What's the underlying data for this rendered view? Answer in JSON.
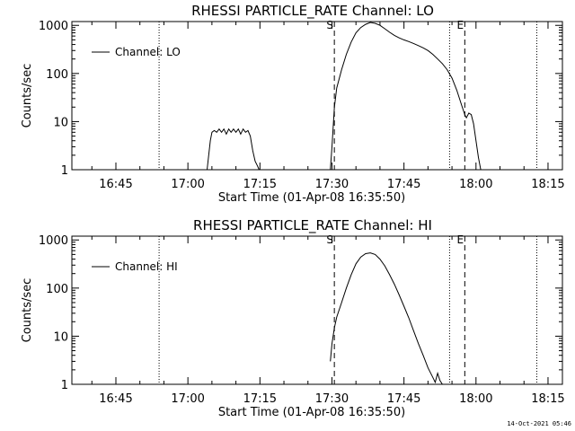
{
  "page": {
    "timestamp": "14-Oct-2021 05:46"
  },
  "chart_data": [
    {
      "type": "line",
      "title": "RHESSI PARTICLE_RATE Channel: LO",
      "xlabel": "Start Time (01-Apr-08 16:35:50)",
      "ylabel": "Counts/sec",
      "y_scale": "log",
      "ylim": [
        1,
        1200
      ],
      "xlim": [
        "16:35:50",
        "18:18:00"
      ],
      "x_ticks": [
        "16:45",
        "17:00",
        "17:15",
        "17:30",
        "17:45",
        "18:00",
        "18:15"
      ],
      "y_ticks": [
        "1",
        "10",
        "100",
        "1000"
      ],
      "legend": {
        "label": "Channel: LO",
        "position": "top-left"
      },
      "markers": [
        {
          "label": "S",
          "time": "17:30:30",
          "style": "dashed"
        },
        {
          "label": "E",
          "time": "17:57:40",
          "style": "dashed"
        }
      ],
      "dotted_lines": [
        "16:54:00",
        "17:54:30",
        "18:12:40"
      ],
      "series": [
        {
          "name": "Channel: LO",
          "segments": [
            [
              [
                "17:04:00",
                1
              ],
              [
                "17:04:40",
                4
              ],
              [
                "17:05:00",
                6
              ],
              [
                "17:05:30",
                6.5
              ],
              [
                "17:06:00",
                6
              ],
              [
                "17:06:30",
                7
              ],
              [
                "17:07:00",
                6
              ],
              [
                "17:07:30",
                7
              ],
              [
                "17:08:00",
                5.5
              ],
              [
                "17:08:30",
                7
              ],
              [
                "17:09:00",
                6
              ],
              [
                "17:09:30",
                7
              ],
              [
                "17:10:00",
                6
              ],
              [
                "17:10:30",
                7
              ],
              [
                "17:11:00",
                5.5
              ],
              [
                "17:11:30",
                7
              ],
              [
                "17:12:00",
                6
              ],
              [
                "17:12:30",
                6.5
              ],
              [
                "17:13:00",
                5
              ],
              [
                "17:13:30",
                2.5
              ],
              [
                "17:14:00",
                1.5
              ],
              [
                "17:14:30",
                1.2
              ],
              [
                "17:14:50",
                1
              ]
            ],
            [
              [
                "17:29:40",
                1
              ],
              [
                "17:30:00",
                3
              ],
              [
                "17:30:30",
                20
              ],
              [
                "17:31:00",
                50
              ],
              [
                "17:32:00",
                120
              ],
              [
                "17:33:00",
                250
              ],
              [
                "17:34:00",
                450
              ],
              [
                "17:35:00",
                700
              ],
              [
                "17:36:00",
                900
              ],
              [
                "17:37:00",
                1050
              ],
              [
                "17:38:00",
                1150
              ],
              [
                "17:39:00",
                1100
              ],
              [
                "17:40:00",
                1000
              ],
              [
                "17:41:00",
                850
              ],
              [
                "17:42:00",
                720
              ],
              [
                "17:43:00",
                620
              ],
              [
                "17:44:00",
                550
              ],
              [
                "17:45:00",
                500
              ],
              [
                "17:46:00",
                460
              ],
              [
                "17:47:00",
                420
              ],
              [
                "17:48:00",
                380
              ],
              [
                "17:49:00",
                340
              ],
              [
                "17:50:00",
                300
              ],
              [
                "17:51:00",
                250
              ],
              [
                "17:52:00",
                200
              ],
              [
                "17:53:00",
                160
              ],
              [
                "17:54:00",
                120
              ],
              [
                "17:55:00",
                80
              ],
              [
                "17:56:00",
                45
              ],
              [
                "17:57:00",
                22
              ],
              [
                "17:57:40",
                14
              ],
              [
                "17:58:00",
                12
              ],
              [
                "17:58:30",
                15
              ],
              [
                "17:59:00",
                14
              ],
              [
                "17:59:30",
                9
              ],
              [
                "18:00:00",
                4
              ],
              [
                "18:00:30",
                1.8
              ],
              [
                "18:01:00",
                1
              ]
            ]
          ]
        }
      ]
    },
    {
      "type": "line",
      "title": "RHESSI PARTICLE_RATE Channel: HI",
      "xlabel": "Start Time (01-Apr-08 16:35:50)",
      "ylabel": "Counts/sec",
      "y_scale": "log",
      "ylim": [
        1,
        1200
      ],
      "xlim": [
        "16:35:50",
        "18:18:00"
      ],
      "x_ticks": [
        "16:45",
        "17:00",
        "17:15",
        "17:30",
        "17:45",
        "18:00",
        "18:15"
      ],
      "y_ticks": [
        "1",
        "10",
        "100",
        "1000"
      ],
      "legend": {
        "label": "Channel: HI",
        "position": "top-left"
      },
      "markers": [
        {
          "label": "S",
          "time": "17:30:30",
          "style": "dashed"
        },
        {
          "label": "E",
          "time": "17:57:40",
          "style": "dashed"
        }
      ],
      "dotted_lines": [
        "16:54:00",
        "17:54:30",
        "18:12:40"
      ],
      "series": [
        {
          "name": "Channel: HI",
          "segments": [
            [
              [
                "17:29:40",
                3
              ],
              [
                "17:30:00",
                7
              ],
              [
                "17:30:30",
                15
              ],
              [
                "17:31:00",
                25
              ],
              [
                "17:32:00",
                50
              ],
              [
                "17:33:00",
                100
              ],
              [
                "17:34:00",
                190
              ],
              [
                "17:35:00",
                320
              ],
              [
                "17:36:00",
                440
              ],
              [
                "17:37:00",
                520
              ],
              [
                "17:38:00",
                540
              ],
              [
                "17:39:00",
                500
              ],
              [
                "17:40:00",
                400
              ],
              [
                "17:41:00",
                290
              ],
              [
                "17:42:00",
                190
              ],
              [
                "17:43:00",
                120
              ],
              [
                "17:44:00",
                72
              ],
              [
                "17:45:00",
                42
              ],
              [
                "17:46:00",
                24
              ],
              [
                "17:47:00",
                13
              ],
              [
                "17:48:00",
                7
              ],
              [
                "17:49:00",
                4
              ],
              [
                "17:50:00",
                2.2
              ],
              [
                "17:51:00",
                1.4
              ],
              [
                "17:51:30",
                1.1
              ],
              [
                "17:52:00",
                1.7
              ],
              [
                "17:52:30",
                1.2
              ],
              [
                "17:53:00",
                1
              ]
            ]
          ]
        }
      ]
    }
  ]
}
